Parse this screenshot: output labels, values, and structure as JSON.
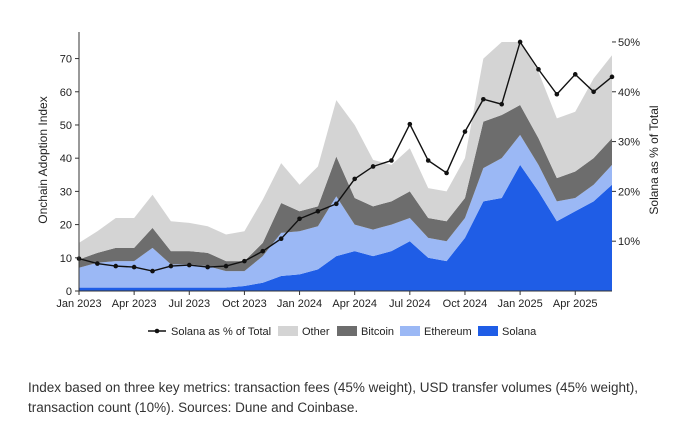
{
  "chart_data": {
    "type": "area",
    "stacked": true,
    "x": [
      "Jan 2023",
      "Feb 2023",
      "Mar 2023",
      "Apr 2023",
      "May 2023",
      "Jun 2023",
      "Jul 2023",
      "Aug 2023",
      "Sep 2023",
      "Oct 2023",
      "Nov 2023",
      "Dec 2023",
      "Jan 2024",
      "Feb 2024",
      "Mar 2024",
      "Apr 2024",
      "May 2024",
      "Jun 2024",
      "Jul 2024",
      "Aug 2024",
      "Sep 2024",
      "Oct 2024",
      "Nov 2024",
      "Dec 2024",
      "Jan 2025",
      "Feb 2025",
      "Mar 2025",
      "Apr 2025",
      "May 2025",
      "Jun 2025"
    ],
    "xticks": [
      "Jan 2023",
      "Apr 2023",
      "Jul 2023",
      "Oct 2023",
      "Jan 2024",
      "Apr 2024",
      "Jul 2024",
      "Oct 2024",
      "Jan 2025",
      "Apr 2025"
    ],
    "ylabel": "Onchain Adoption Index",
    "y2label": "Solana as % of Total",
    "ylim": [
      0,
      78
    ],
    "yticks": [
      0,
      10,
      20,
      30,
      40,
      50,
      60,
      70
    ],
    "y2lim": [
      0,
      0.52
    ],
    "y2ticks": [
      "10%",
      "20%",
      "30%",
      "40%",
      "50%"
    ],
    "grid": false,
    "legend_position": "bottom",
    "series": [
      {
        "name": "Solana",
        "color": "#1f5de6",
        "values": [
          1,
          1,
          1,
          1,
          1,
          1,
          1,
          1,
          1,
          1.5,
          2.5,
          4.5,
          5,
          6.5,
          10.5,
          12,
          10.5,
          12,
          15,
          10,
          9,
          16,
          27,
          28,
          38,
          30,
          21,
          24,
          27,
          32
        ]
      },
      {
        "name": "Ethereum",
        "color": "#9bb8f5",
        "values": [
          6,
          7.5,
          8,
          8,
          12,
          7,
          7,
          6.5,
          5,
          4.5,
          8,
          13,
          13,
          13,
          18,
          8,
          8,
          8,
          7,
          6,
          6,
          6,
          10,
          12,
          9,
          8,
          6,
          4,
          5,
          6
        ]
      },
      {
        "name": "Bitcoin",
        "color": "#6d6d6d",
        "values": [
          2.5,
          3,
          4,
          4,
          6,
          4,
          4,
          4,
          3,
          3,
          4,
          9,
          6,
          6,
          12,
          8,
          7,
          7,
          8,
          6,
          6,
          6,
          14,
          13,
          9,
          8,
          7,
          8,
          8,
          8
        ]
      },
      {
        "name": "Other",
        "color": "#d4d4d4",
        "values": [
          5,
          6.5,
          9,
          9,
          10,
          9,
          8.5,
          8,
          8,
          9,
          13,
          12,
          8,
          12,
          17,
          22,
          14,
          11,
          13,
          9,
          9,
          12,
          19,
          22,
          19,
          20,
          18,
          18,
          24,
          25
        ]
      },
      {
        "name": "Solana as % of Total",
        "color": "#111111",
        "axis": "right",
        "values": [
          0.065,
          0.055,
          0.05,
          0.048,
          0.04,
          0.05,
          0.052,
          0.048,
          0.05,
          0.06,
          0.08,
          0.105,
          0.145,
          0.16,
          0.175,
          0.225,
          0.25,
          0.262,
          0.335,
          0.262,
          0.237,
          0.32,
          0.385,
          0.375,
          0.5,
          0.445,
          0.395,
          0.435,
          0.4,
          0.43
        ]
      }
    ]
  },
  "legend": [
    {
      "label": "Solana as % of Total",
      "kind": "line",
      "color": "#111111"
    },
    {
      "label": "Other",
      "kind": "box",
      "color": "#d4d4d4"
    },
    {
      "label": "Bitcoin",
      "kind": "box",
      "color": "#6d6d6d"
    },
    {
      "label": "Ethereum",
      "kind": "box",
      "color": "#9bb8f5"
    },
    {
      "label": "Solana",
      "kind": "box",
      "color": "#1f5de6"
    }
  ],
  "caption": "Index based on three key metrics: transaction fees (45% weight), USD transfer volumes (45% weight), transaction count (10%). Sources: Dune and Coinbase."
}
